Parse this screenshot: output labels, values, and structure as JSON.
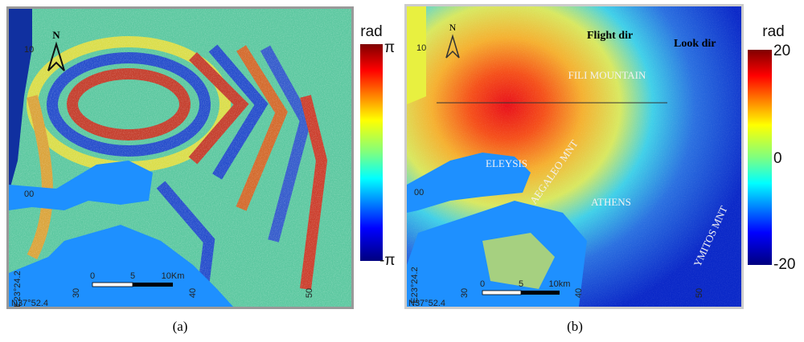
{
  "panel_a": {
    "caption": "(a)",
    "colorbar": {
      "unit": "rad",
      "max_label": "π",
      "min_label": "-π"
    },
    "north": "N",
    "grid_labels": [
      "10",
      "00",
      "30",
      "40",
      "50"
    ],
    "lon_label": "E23°24.2",
    "lat_label": "N37°52.4",
    "scale": [
      "0",
      "5",
      "10Km"
    ]
  },
  "panel_b": {
    "caption": "(b)",
    "colorbar": {
      "unit": "rad",
      "max_label": "20",
      "mid_label": "0",
      "min_label": "-20"
    },
    "north": "N",
    "grid_labels": [
      "10",
      "00",
      "30",
      "40",
      "50"
    ],
    "lon_label": "E23°24.2",
    "lat_label": "N37°52.4",
    "scale": [
      "0",
      "5",
      "10km"
    ],
    "flight_dir": "Flight dir",
    "look_dir": "Look dir",
    "places": [
      "FILI MOUNTAIN",
      "ELEYSIS",
      "AEGALEO MNT",
      "ATHENS",
      "YMITOS MNT"
    ]
  }
}
